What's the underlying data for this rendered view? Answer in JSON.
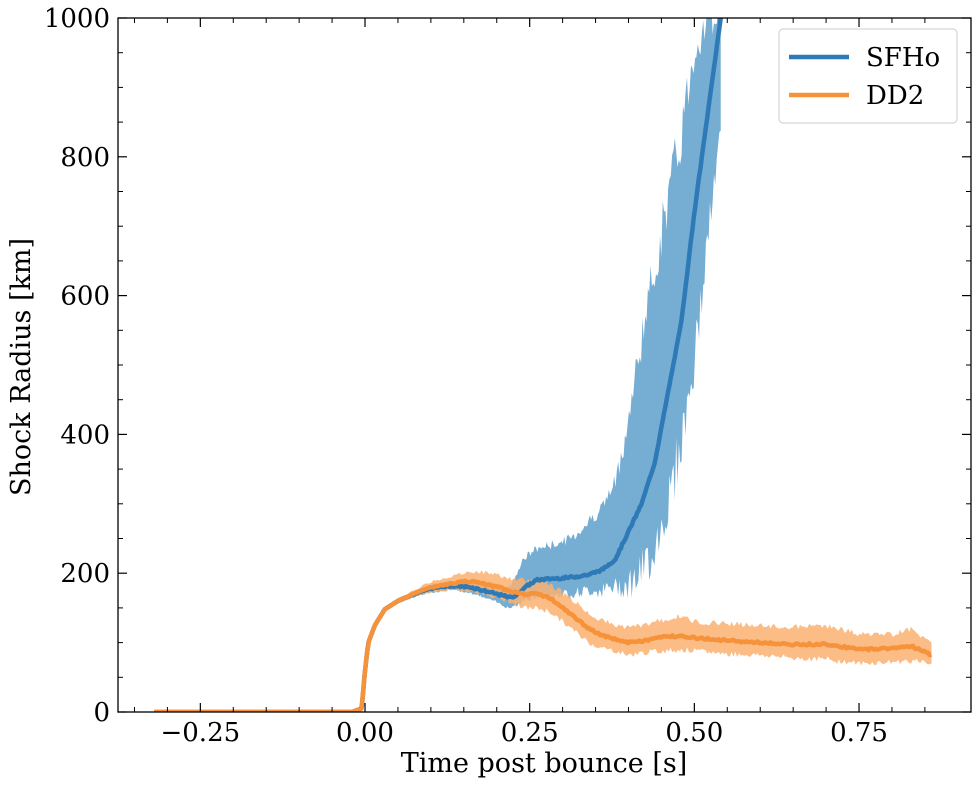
{
  "chart_data": {
    "type": "line",
    "xlabel": "Time post bounce [s]",
    "ylabel": "Shock Radius [km]",
    "xlim": [
      -0.375,
      0.92
    ],
    "ylim": [
      0,
      1000
    ],
    "x_ticks": [
      -0.25,
      0.0,
      0.25,
      0.5,
      0.75
    ],
    "x_tick_labels": [
      "−0.25",
      "0.00",
      "0.25",
      "0.50",
      "0.75"
    ],
    "y_ticks": [
      0,
      200,
      400,
      600,
      800,
      1000
    ],
    "y_tick_labels": [
      "0",
      "200",
      "400",
      "600",
      "800",
      "1000"
    ],
    "grid": false,
    "legend": {
      "position": "top-right"
    },
    "series": [
      {
        "name": "SFHo",
        "color": "#2e7ab7",
        "band_color": "#75add3",
        "x": [
          -0.32,
          -0.02,
          -0.005,
          0.0,
          0.005,
          0.015,
          0.03,
          0.05,
          0.08,
          0.1,
          0.13,
          0.16,
          0.18,
          0.2,
          0.22,
          0.23,
          0.24,
          0.26,
          0.28,
          0.3,
          0.32,
          0.34,
          0.36,
          0.38,
          0.4,
          0.42,
          0.44,
          0.46,
          0.48,
          0.5,
          0.52,
          0.54
        ],
        "y": [
          0,
          0,
          5,
          60,
          100,
          125,
          148,
          160,
          172,
          178,
          182,
          180,
          175,
          170,
          165,
          168,
          178,
          190,
          192,
          193,
          195,
          198,
          205,
          220,
          260,
          300,
          360,
          460,
          560,
          720,
          860,
          1000
        ],
        "lower": [
          0,
          0,
          3,
          55,
          95,
          120,
          145,
          157,
          168,
          172,
          176,
          172,
          165,
          158,
          150,
          155,
          160,
          165,
          168,
          170,
          172,
          175,
          175,
          180,
          185,
          200,
          240,
          300,
          390,
          500,
          680,
          840
        ],
        "upper": [
          0,
          0,
          8,
          65,
          105,
          130,
          152,
          164,
          176,
          184,
          188,
          190,
          187,
          183,
          180,
          200,
          220,
          235,
          240,
          245,
          255,
          275,
          295,
          330,
          420,
          540,
          640,
          740,
          830,
          960,
          1000,
          1000
        ]
      },
      {
        "name": "DD2",
        "color": "#f5923a",
        "band_color": "#fbb070",
        "x": [
          -0.32,
          -0.02,
          -0.005,
          0.0,
          0.005,
          0.015,
          0.03,
          0.05,
          0.08,
          0.1,
          0.13,
          0.15,
          0.17,
          0.2,
          0.22,
          0.24,
          0.26,
          0.28,
          0.3,
          0.32,
          0.34,
          0.36,
          0.38,
          0.4,
          0.42,
          0.45,
          0.48,
          0.5,
          0.55,
          0.6,
          0.65,
          0.7,
          0.75,
          0.8,
          0.83,
          0.86
        ],
        "y": [
          0,
          0,
          5,
          60,
          100,
          125,
          148,
          160,
          173,
          180,
          185,
          188,
          187,
          180,
          175,
          170,
          170,
          165,
          150,
          135,
          120,
          110,
          105,
          100,
          102,
          108,
          110,
          107,
          103,
          100,
          97,
          98,
          90,
          92,
          95,
          82
        ],
        "lower": [
          0,
          0,
          3,
          55,
          95,
          120,
          144,
          156,
          168,
          172,
          176,
          175,
          172,
          165,
          158,
          150,
          150,
          145,
          130,
          115,
          100,
          92,
          88,
          82,
          85,
          88,
          90,
          88,
          84,
          82,
          78,
          76,
          70,
          72,
          74,
          70
        ],
        "upper": [
          0,
          0,
          8,
          65,
          105,
          130,
          152,
          164,
          178,
          188,
          195,
          200,
          203,
          198,
          192,
          190,
          190,
          185,
          172,
          158,
          142,
          132,
          125,
          122,
          125,
          132,
          138,
          130,
          128,
          124,
          122,
          125,
          112,
          112,
          120,
          98
        ]
      }
    ]
  }
}
